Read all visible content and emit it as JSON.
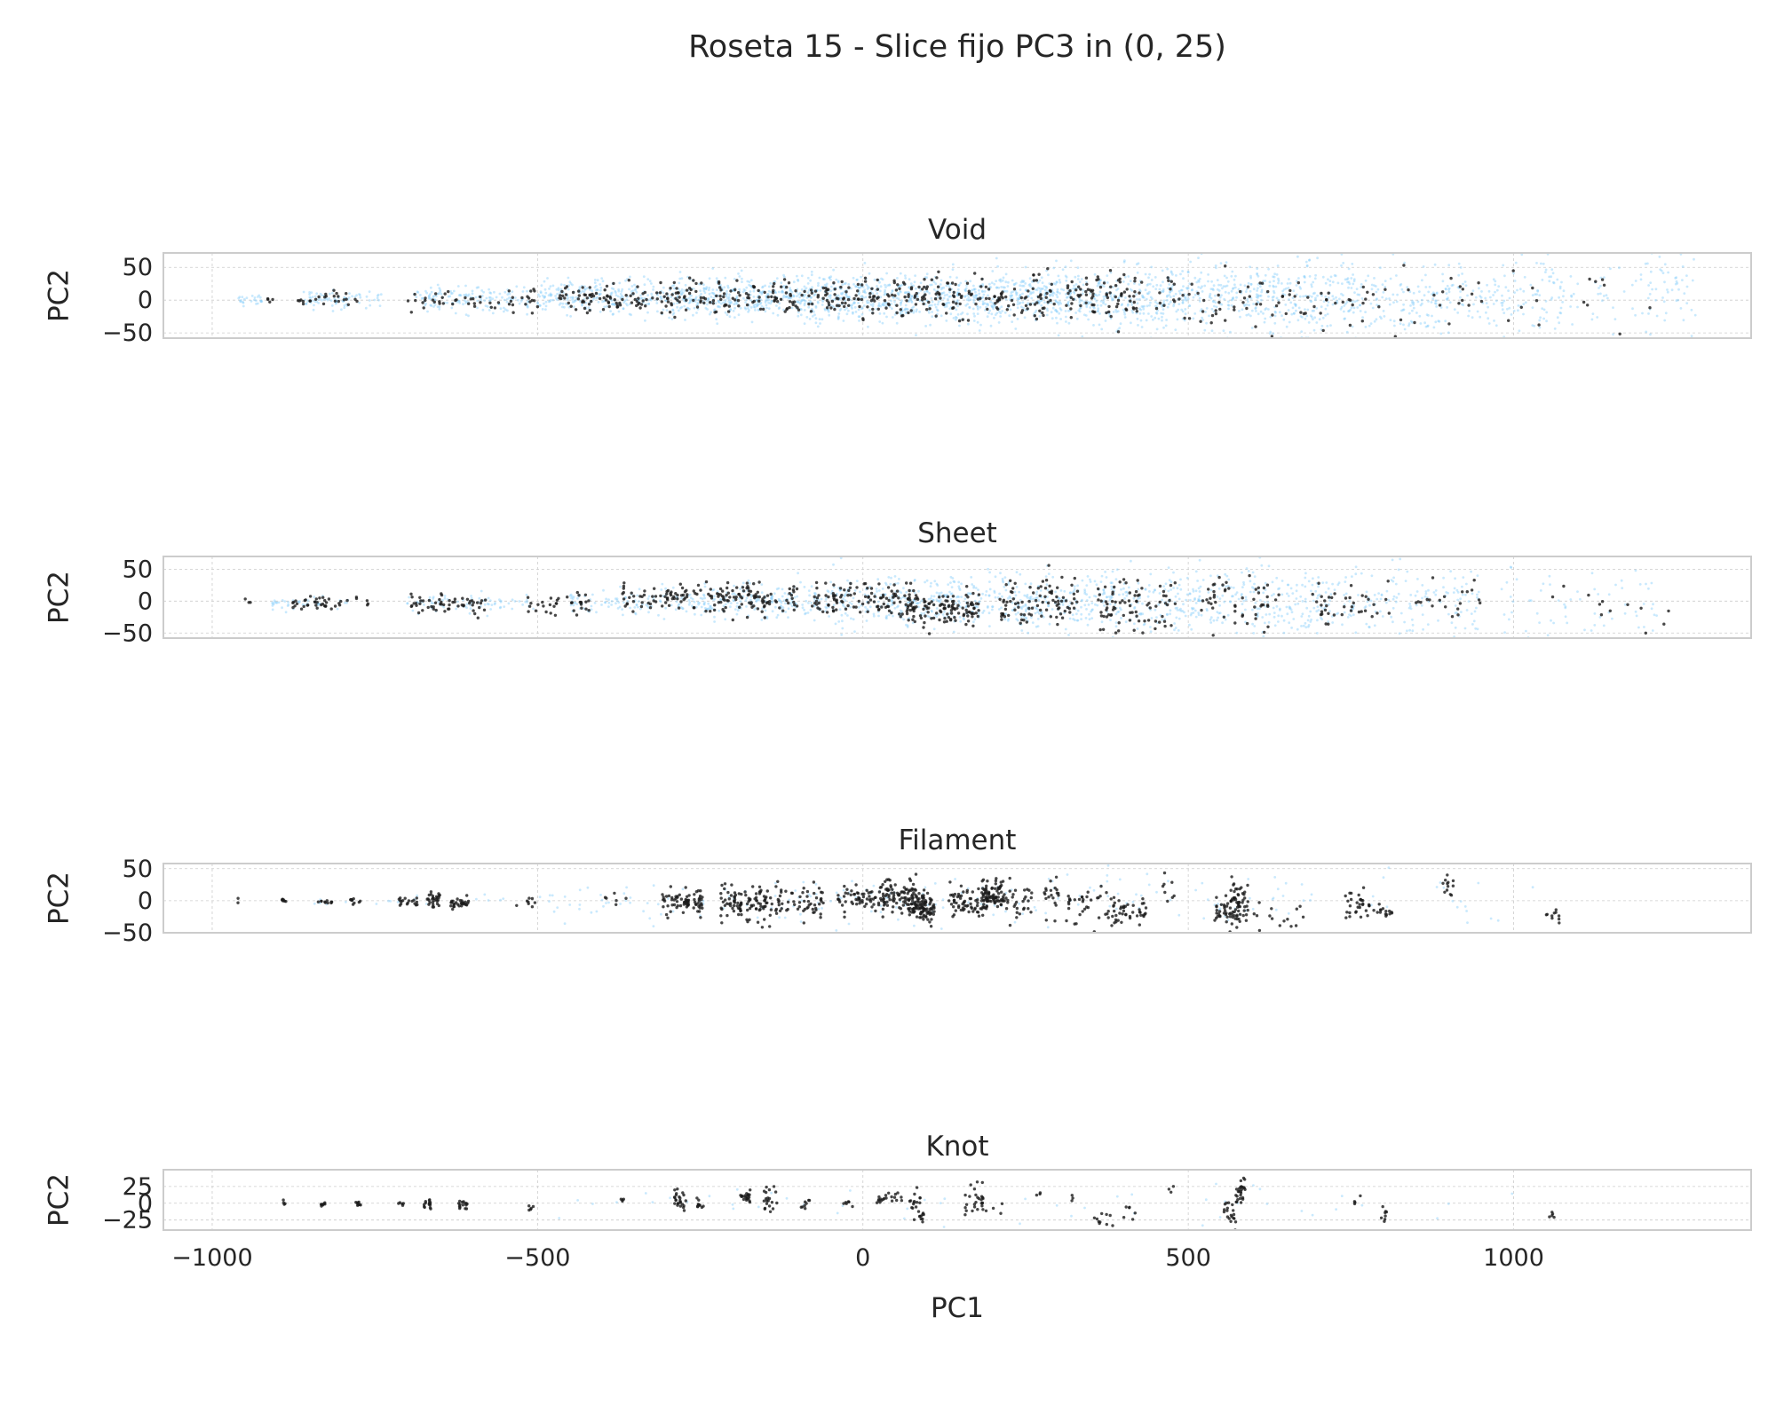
{
  "figure": {
    "title": "Roseta 15 - Slice fijo PC3 in (0, 25)"
  },
  "chart_data": {
    "type": "scatter",
    "title": "Roseta 15 - Slice fijo PC3 in (0, 25)",
    "xlabel": "PC1",
    "xlim": [
      -1075,
      1365
    ],
    "xticks": [
      -1000,
      -500,
      0,
      500,
      1000
    ],
    "xtick_labels": [
      "−1000",
      "−500",
      "0",
      "500",
      "1000"
    ],
    "grid": true,
    "colors": {
      "background_points": "#87cefa",
      "highlight_points": "#1a1a1a",
      "frame": "#cccccc",
      "grid": "#cccccc"
    },
    "panels": [
      {
        "title": "Void",
        "ylabel": "PC2",
        "ylim": [
          -58,
          72
        ],
        "yticks": [
          50,
          0,
          -50
        ],
        "ytick_labels": [
          "50",
          "0",
          "−50"
        ],
        "series": [
          {
            "role": "background",
            "color": "#87cefa",
            "clusters": [
              [
                -940,
                0,
                20,
                4,
                25
              ],
              [
                -800,
                0,
                60,
                8,
                80
              ],
              [
                -600,
                2,
                90,
                10,
                150
              ],
              [
                -400,
                5,
                100,
                13,
                250
              ],
              [
                -200,
                5,
                100,
                16,
                350
              ],
              [
                0,
                4,
                100,
                18,
                400
              ],
              [
                200,
                5,
                100,
                20,
                400
              ],
              [
                400,
                5,
                100,
                23,
                350
              ],
              [
                600,
                5,
                100,
                26,
                300
              ],
              [
                800,
                0,
                100,
                28,
                220
              ],
              [
                1000,
                5,
                100,
                30,
                150
              ],
              [
                1200,
                10,
                80,
                32,
                80
              ]
            ]
          },
          {
            "role": "highlight",
            "color": "#1a1a1a",
            "clusters": [
              [
                -910,
                0,
                10,
                3,
                4
              ],
              [
                -820,
                0,
                50,
                5,
                25
              ],
              [
                -600,
                0,
                100,
                9,
                50
              ],
              [
                -380,
                4,
                90,
                10,
                90
              ],
              [
                -200,
                4,
                100,
                12,
                110
              ],
              [
                0,
                3,
                100,
                14,
                120
              ],
              [
                200,
                4,
                100,
                16,
                110
              ],
              [
                370,
                4,
                60,
                18,
                80
              ],
              [
                550,
                0,
                100,
                22,
                50
              ],
              [
                750,
                -8,
                100,
                25,
                35
              ],
              [
                950,
                5,
                90,
                28,
                20
              ],
              [
                1150,
                10,
                60,
                30,
                8
              ]
            ]
          }
        ]
      },
      {
        "title": "Sheet",
        "ylabel": "PC2",
        "ylim": [
          -58,
          70
        ],
        "yticks": [
          50,
          0,
          -50
        ],
        "ytick_labels": [
          "50",
          "0",
          "−50"
        ],
        "series": [
          {
            "role": "background",
            "color": "#87cefa",
            "clusters": [
              [
                -850,
                -2,
                60,
                5,
                40
              ],
              [
                -600,
                -2,
                100,
                8,
                80
              ],
              [
                -350,
                -2,
                100,
                12,
                120
              ],
              [
                -150,
                0,
                100,
                15,
                200
              ],
              [
                50,
                0,
                100,
                20,
                250
              ],
              [
                250,
                0,
                100,
                22,
                250
              ],
              [
                450,
                0,
                100,
                25,
                220
              ],
              [
                650,
                0,
                100,
                28,
                200
              ],
              [
                850,
                0,
                100,
                30,
                140
              ],
              [
                1100,
                -5,
                120,
                32,
                70
              ]
            ]
          },
          {
            "role": "highlight",
            "color": "#1a1a1a",
            "clusters": [
              [
                -940,
                0,
                10,
                3,
                3
              ],
              [
                -820,
                -2,
                60,
                5,
                40
              ],
              [
                -640,
                -5,
                60,
                7,
                55
              ],
              [
                -470,
                -5,
                50,
                8,
                35
              ],
              [
                -320,
                5,
                50,
                10,
                60
              ],
              [
                -180,
                5,
                80,
                13,
                110
              ],
              [
                0,
                5,
                80,
                14,
                110
              ],
              [
                120,
                -10,
                60,
                14,
                120
              ],
              [
                270,
                0,
                60,
                18,
                90
              ],
              [
                420,
                -10,
                60,
                22,
                80
              ],
              [
                580,
                0,
                60,
                25,
                50
              ],
              [
                750,
                -5,
                60,
                25,
                40
              ],
              [
                900,
                15,
                50,
                25,
                20
              ],
              [
                1150,
                -10,
                100,
                25,
                12
              ]
            ]
          }
        ]
      },
      {
        "title": "Filament",
        "ylabel": "PC2",
        "ylim": [
          -50,
          58
        ],
        "yticks": [
          50,
          0,
          -50
        ],
        "ytick_labels": [
          "50",
          "0",
          "−50"
        ],
        "series": [
          {
            "role": "background",
            "color": "#87cefa",
            "clusters": [
              [
                -700,
                0,
                150,
                5,
                20
              ],
              [
                -300,
                0,
                200,
                15,
                60
              ],
              [
                100,
                0,
                200,
                20,
                80
              ],
              [
                500,
                0,
                200,
                22,
                60
              ],
              [
                900,
                0,
                150,
                25,
                20
              ]
            ]
          },
          {
            "role": "highlight",
            "color": "#1a1a1a",
            "clusters": [
              [
                -960,
                0,
                3,
                2,
                2
              ],
              [
                -890,
                0,
                4,
                2,
                7
              ],
              [
                -830,
                -2,
                15,
                2,
                10
              ],
              [
                -780,
                0,
                8,
                3,
                10
              ],
              [
                -700,
                0,
                15,
                4,
                18
              ],
              [
                -660,
                0,
                10,
                6,
                28
              ],
              [
                -620,
                -4,
                15,
                6,
                30
              ],
              [
                -510,
                -5,
                30,
                7,
                8
              ],
              [
                -380,
                0,
                30,
                8,
                6
              ],
              [
                -290,
                0,
                20,
                10,
                30
              ],
              [
                -260,
                -2,
                15,
                10,
                45
              ],
              [
                -180,
                0,
                40,
                15,
                100
              ],
              [
                -100,
                -2,
                40,
                12,
                60
              ],
              [
                0,
                2,
                40,
                12,
                70
              ],
              [
                60,
                8,
                30,
                12,
                80
              ],
              [
                90,
                -10,
                20,
                12,
                100
              ],
              [
                160,
                -5,
                30,
                14,
                70
              ],
              [
                200,
                10,
                20,
                12,
                80
              ],
              [
                240,
                0,
                20,
                15,
                30
              ],
              [
                290,
                15,
                15,
                15,
                20
              ],
              [
                350,
                -10,
                40,
                15,
                40
              ],
              [
                410,
                -15,
                25,
                12,
                40
              ],
              [
                470,
                20,
                10,
                12,
                8
              ],
              [
                560,
                -18,
                20,
                15,
                50
              ],
              [
                580,
                5,
                15,
                15,
                40
              ],
              [
                640,
                -25,
                40,
                15,
                15
              ],
              [
                760,
                -8,
                20,
                12,
                30
              ],
              [
                800,
                -15,
                15,
                6,
                15
              ],
              [
                900,
                25,
                10,
                8,
                12
              ],
              [
                1060,
                -25,
                10,
                6,
                10
              ]
            ]
          }
        ]
      },
      {
        "title": "Knot",
        "ylabel": "PC2",
        "ylim": [
          -40,
          50
        ],
        "yticks": [
          25,
          0,
          -25
        ],
        "ytick_labels": [
          "25",
          "0",
          "−25"
        ],
        "series": [
          {
            "role": "background",
            "color": "#87cefa",
            "clusters": [
              [
                -200,
                0,
                300,
                15,
                20
              ],
              [
                300,
                0,
                300,
                20,
                20
              ],
              [
                800,
                0,
                200,
                20,
                10
              ]
            ]
          },
          {
            "role": "highlight",
            "color": "#1a1a1a",
            "clusters": [
              [
                -890,
                0,
                3,
                2,
                4
              ],
              [
                -830,
                -2,
                5,
                2,
                8
              ],
              [
                -775,
                0,
                5,
                2,
                8
              ],
              [
                -710,
                0,
                4,
                2,
                5
              ],
              [
                -670,
                0,
                6,
                4,
                15
              ],
              [
                -615,
                -2,
                8,
                4,
                15
              ],
              [
                -510,
                -5,
                4,
                3,
                5
              ],
              [
                -370,
                0,
                3,
                3,
                4
              ],
              [
                -280,
                5,
                10,
                8,
                25
              ],
              [
                -250,
                -2,
                6,
                6,
                10
              ],
              [
                -180,
                10,
                8,
                4,
                20
              ],
              [
                -140,
                5,
                15,
                10,
                20
              ],
              [
                -90,
                -3,
                10,
                4,
                8
              ],
              [
                -20,
                0,
                10,
                5,
                6
              ],
              [
                40,
                8,
                20,
                5,
                20
              ],
              [
                80,
                0,
                8,
                10,
                15
              ],
              [
                90,
                -15,
                5,
                6,
                10
              ],
              [
                170,
                5,
                15,
                12,
                25
              ],
              [
                200,
                -10,
                20,
                6,
                6
              ],
              [
                270,
                12,
                3,
                3,
                3
              ],
              [
                320,
                5,
                3,
                3,
                3
              ],
              [
                370,
                -25,
                15,
                6,
                10
              ],
              [
                410,
                -10,
                10,
                6,
                6
              ],
              [
                475,
                20,
                5,
                3,
                3
              ],
              [
                565,
                -15,
                10,
                10,
                20
              ],
              [
                580,
                15,
                8,
                10,
                25
              ],
              [
                760,
                5,
                5,
                3,
                4
              ],
              [
                800,
                -15,
                5,
                6,
                8
              ],
              [
                1060,
                -20,
                5,
                3,
                5
              ]
            ]
          }
        ]
      }
    ]
  }
}
